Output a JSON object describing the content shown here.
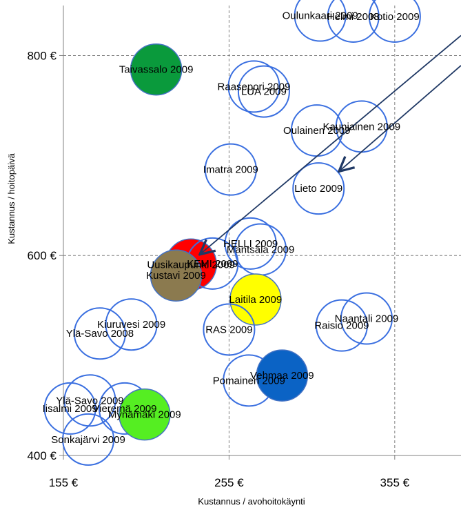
{
  "chart_data": {
    "type": "scatter",
    "title": "",
    "xlabel": "Kustannus / avohoitokäynti",
    "ylabel": "Kustannus / hoitopäivä",
    "xlim": [
      155,
      395
    ],
    "ylim": [
      400,
      850
    ],
    "x_ticks": [
      155,
      255,
      355
    ],
    "x_tick_labels": [
      "155 €",
      "255 €",
      "355 €"
    ],
    "y_ticks": [
      400,
      600,
      800
    ],
    "y_tick_labels": [
      "400 €",
      "600 €",
      "800 €"
    ],
    "grid": true,
    "series": [
      {
        "points": [
          {
            "label": "Oulunkaari 2009",
            "x": 310,
            "y": 840,
            "fill": "none"
          },
          {
            "label": "Helmi 2008",
            "x": 330,
            "y": 839,
            "fill": "none"
          },
          {
            "label": "Kotio 2009",
            "x": 355,
            "y": 839,
            "fill": "none"
          },
          {
            "label": "Taivassalo 2009",
            "x": 211,
            "y": 786,
            "fill": "#0a9a3c"
          },
          {
            "label": "Raasepori 2009",
            "x": 270,
            "y": 769,
            "fill": "none"
          },
          {
            "label": "LUA 2009",
            "x": 276,
            "y": 764,
            "fill": "none"
          },
          {
            "label": "Kauniainen 2009",
            "x": 335,
            "y": 729,
            "fill": "none"
          },
          {
            "label": "Oulainen 2009",
            "x": 308,
            "y": 725,
            "fill": "none"
          },
          {
            "label": "Imatra 2009",
            "x": 256,
            "y": 686,
            "fill": "none"
          },
          {
            "label": "Lieto 2009",
            "x": 309,
            "y": 667,
            "fill": "none"
          },
          {
            "label": "HELLI 2009",
            "x": 268,
            "y": 612,
            "fill": "none"
          },
          {
            "label": "Mantsala 2009",
            "x": 274,
            "y": 606,
            "fill": "none"
          },
          {
            "label": "Uusikaupunki 2009",
            "x": 232,
            "y": 591,
            "fill": "#ff0000"
          },
          {
            "label": "KEMI 2009",
            "x": 245,
            "y": 592,
            "fill": "none"
          },
          {
            "label": "Kustavi 2009",
            "x": 223,
            "y": 580,
            "fill": "#8b7a4f"
          },
          {
            "label": "Laitila 2009",
            "x": 271,
            "y": 556,
            "fill": "#ffff00"
          },
          {
            "label": "Naantali 2009",
            "x": 338,
            "y": 537,
            "fill": "none"
          },
          {
            "label": "Raisio 2009",
            "x": 323,
            "y": 530,
            "fill": "none"
          },
          {
            "label": "Kiuruvesi 2009",
            "x": 196,
            "y": 531,
            "fill": "none"
          },
          {
            "label": "Ylä-Savo 2008",
            "x": 177,
            "y": 522,
            "fill": "none"
          },
          {
            "label": "RAS 2009",
            "x": 255,
            "y": 526,
            "fill": "none"
          },
          {
            "label": "Pomainen 2009",
            "x": 267,
            "y": 475,
            "fill": "none"
          },
          {
            "label": "Vehmaa 2009",
            "x": 287,
            "y": 480,
            "fill": "#0b63c5"
          },
          {
            "label": "Ylä-Savo 2009",
            "x": 171,
            "y": 455,
            "fill": "none"
          },
          {
            "label": "Iisalmi 2009",
            "x": 159,
            "y": 447,
            "fill": "none"
          },
          {
            "label": "Vieremä 2009",
            "x": 192,
            "y": 447,
            "fill": "none"
          },
          {
            "label": "Mynämäki 2009",
            "x": 204,
            "y": 441,
            "fill": "#55ee22"
          },
          {
            "label": "Sonkajärvi 2009",
            "x": 170,
            "y": 416,
            "fill": "none"
          }
        ]
      }
    ],
    "arrows": [
      {
        "from": [
          395,
          820
        ],
        "to": [
          238,
          602
        ]
      },
      {
        "from": [
          395,
          790
        ],
        "to": [
          322,
          685
        ]
      }
    ]
  }
}
